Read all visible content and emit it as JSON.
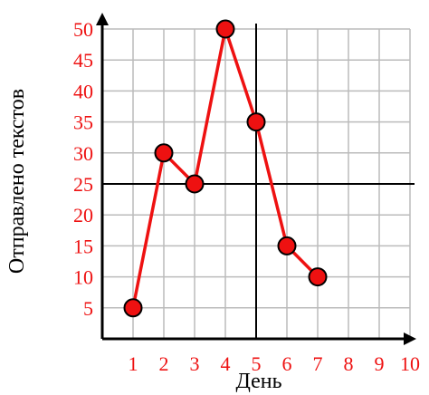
{
  "chart_data": {
    "type": "line",
    "title": "",
    "xlabel": "День",
    "ylabel": "Отправлено текстов",
    "xlim": [
      0,
      10
    ],
    "ylim": [
      0,
      50
    ],
    "x_ticks": [
      "1",
      "2",
      "3",
      "4",
      "5",
      "6",
      "7",
      "8",
      "9",
      "10"
    ],
    "y_ticks": [
      "5",
      "10",
      "15",
      "20",
      "25",
      "30",
      "35",
      "40",
      "45",
      "50"
    ],
    "grid": true,
    "reference_lines": {
      "x": 5,
      "y": 25
    },
    "series": [
      {
        "x": [
          1,
          2,
          3,
          4,
          5,
          6,
          7
        ],
        "y": [
          5,
          30,
          25,
          50,
          35,
          15,
          10
        ]
      }
    ],
    "colors": {
      "series": "#ee1111",
      "text": "#ee1111",
      "grid": "#bbbbbb",
      "axis": "#000000"
    }
  }
}
